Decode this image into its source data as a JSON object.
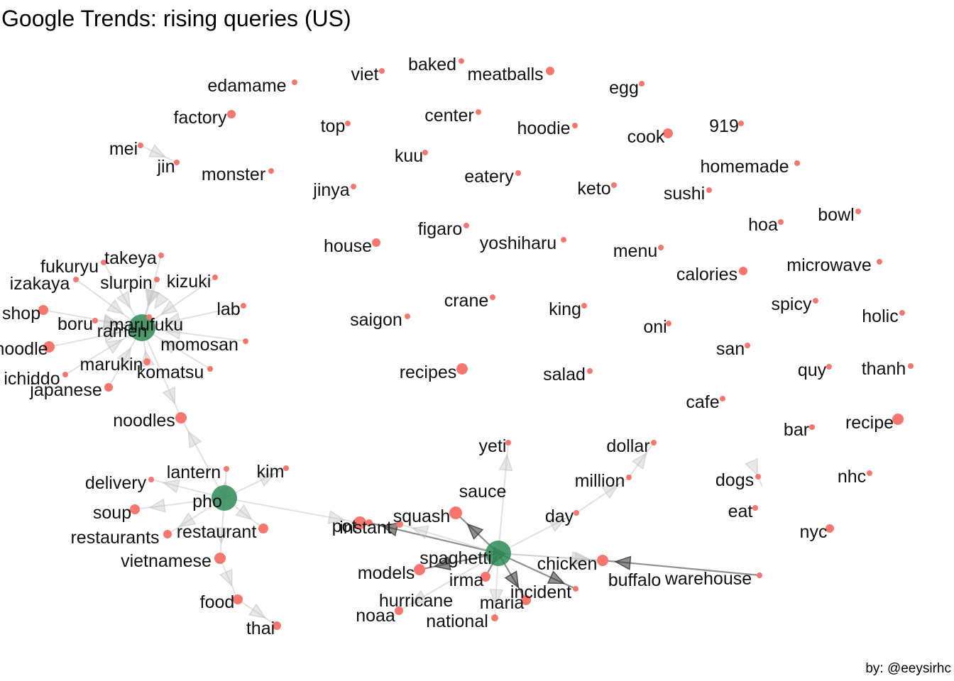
{
  "title": "Google Trends: rising queries (US)",
  "caption": "by: @eeysirhc",
  "colors": {
    "hub": "#2e8b57",
    "node": "#f8766d",
    "edge_light": "#bdbdbd",
    "edge_dark": "#333333"
  },
  "nodes": [
    {
      "id": "ramen",
      "label": "ramen",
      "type": "hub"
    },
    {
      "id": "pho",
      "label": "pho",
      "type": "hub"
    },
    {
      "id": "spaghetti",
      "label": "spaghetti",
      "type": "hub"
    },
    {
      "id": "takeya",
      "label": "takeya"
    },
    {
      "id": "fukuryu",
      "label": "fukuryu"
    },
    {
      "id": "izakaya",
      "label": "izakaya"
    },
    {
      "id": "slurpin",
      "label": "slurpin"
    },
    {
      "id": "kizuki",
      "label": "kizuki"
    },
    {
      "id": "shop",
      "label": "shop"
    },
    {
      "id": "lab",
      "label": "lab"
    },
    {
      "id": "boru",
      "label": "boru"
    },
    {
      "id": "marufuku",
      "label": "marufuku"
    },
    {
      "id": "noodle",
      "label": "noodle"
    },
    {
      "id": "momosan",
      "label": "momosan"
    },
    {
      "id": "marukin",
      "label": "marukin"
    },
    {
      "id": "ichiddo",
      "label": "ichiddo"
    },
    {
      "id": "komatsu",
      "label": "komatsu"
    },
    {
      "id": "japanese",
      "label": "japanese"
    },
    {
      "id": "noodles",
      "label": "noodles"
    },
    {
      "id": "lantern",
      "label": "lantern"
    },
    {
      "id": "kim",
      "label": "kim"
    },
    {
      "id": "delivery",
      "label": "delivery"
    },
    {
      "id": "soup",
      "label": "soup"
    },
    {
      "id": "restaurants",
      "label": "restaurants"
    },
    {
      "id": "restaurant",
      "label": "restaurant"
    },
    {
      "id": "vietnamese",
      "label": "vietnamese"
    },
    {
      "id": "food",
      "label": "food"
    },
    {
      "id": "thai",
      "label": "thai"
    },
    {
      "id": "pot",
      "label": "pot"
    },
    {
      "id": "instant",
      "label": "instant"
    },
    {
      "id": "squash",
      "label": "squash"
    },
    {
      "id": "sauce",
      "label": "sauce"
    },
    {
      "id": "yeti",
      "label": "yeti"
    },
    {
      "id": "dollar",
      "label": "dollar"
    },
    {
      "id": "million",
      "label": "million"
    },
    {
      "id": "day",
      "label": "day"
    },
    {
      "id": "chicken",
      "label": "chicken"
    },
    {
      "id": "buffalo",
      "label": "buffalo"
    },
    {
      "id": "warehouse",
      "label": "warehouse"
    },
    {
      "id": "models",
      "label": "models"
    },
    {
      "id": "irma",
      "label": "irma"
    },
    {
      "id": "incident",
      "label": "incident"
    },
    {
      "id": "hurricane",
      "label": "hurricane"
    },
    {
      "id": "maria",
      "label": "maria"
    },
    {
      "id": "noaa",
      "label": "noaa"
    },
    {
      "id": "national",
      "label": "national"
    },
    {
      "id": "edamame",
      "label": "edamame"
    },
    {
      "id": "viet",
      "label": "viet"
    },
    {
      "id": "baked",
      "label": "baked"
    },
    {
      "id": "meatballs",
      "label": "meatballs"
    },
    {
      "id": "egg",
      "label": "egg"
    },
    {
      "id": "factory",
      "label": "factory"
    },
    {
      "id": "top",
      "label": "top"
    },
    {
      "id": "center",
      "label": "center"
    },
    {
      "id": "hoodie",
      "label": "hoodie"
    },
    {
      "id": "cook",
      "label": "cook"
    },
    {
      "id": "919",
      "label": "919"
    },
    {
      "id": "mei",
      "label": "mei"
    },
    {
      "id": "jin",
      "label": "jin"
    },
    {
      "id": "monster",
      "label": "monster"
    },
    {
      "id": "kuu",
      "label": "kuu"
    },
    {
      "id": "eatery",
      "label": "eatery"
    },
    {
      "id": "homemade",
      "label": "homemade"
    },
    {
      "id": "jinya",
      "label": "jinya"
    },
    {
      "id": "keto",
      "label": "keto"
    },
    {
      "id": "sushi",
      "label": "sushi"
    },
    {
      "id": "hoa",
      "label": "hoa"
    },
    {
      "id": "bowl",
      "label": "bowl"
    },
    {
      "id": "figaro",
      "label": "figaro"
    },
    {
      "id": "house",
      "label": "house"
    },
    {
      "id": "yoshiharu",
      "label": "yoshiharu"
    },
    {
      "id": "menu",
      "label": "menu"
    },
    {
      "id": "calories",
      "label": "calories"
    },
    {
      "id": "microwave",
      "label": "microwave"
    },
    {
      "id": "crane",
      "label": "crane"
    },
    {
      "id": "saigon",
      "label": "saigon"
    },
    {
      "id": "king",
      "label": "king"
    },
    {
      "id": "oni",
      "label": "oni"
    },
    {
      "id": "spicy",
      "label": "spicy"
    },
    {
      "id": "holic",
      "label": "holic"
    },
    {
      "id": "san",
      "label": "san"
    },
    {
      "id": "recipes",
      "label": "recipes"
    },
    {
      "id": "salad",
      "label": "salad"
    },
    {
      "id": "quy",
      "label": "quy"
    },
    {
      "id": "thanh",
      "label": "thanh"
    },
    {
      "id": "cafe",
      "label": "cafe"
    },
    {
      "id": "bar",
      "label": "bar"
    },
    {
      "id": "recipe",
      "label": "recipe"
    },
    {
      "id": "dogs",
      "label": "dogs"
    },
    {
      "id": "nhc",
      "label": "nhc"
    },
    {
      "id": "eat",
      "label": "eat"
    },
    {
      "id": "nyc",
      "label": "nyc"
    }
  ],
  "edges": [
    {
      "from": "takeya",
      "to": "ramen"
    },
    {
      "from": "fukuryu",
      "to": "ramen"
    },
    {
      "from": "izakaya",
      "to": "ramen"
    },
    {
      "from": "slurpin",
      "to": "ramen"
    },
    {
      "from": "kizuki",
      "to": "ramen"
    },
    {
      "from": "shop",
      "to": "ramen"
    },
    {
      "from": "lab",
      "to": "ramen"
    },
    {
      "from": "boru",
      "to": "ramen"
    },
    {
      "from": "marufuku",
      "to": "ramen"
    },
    {
      "from": "noodle",
      "to": "ramen"
    },
    {
      "from": "momosan",
      "to": "ramen"
    },
    {
      "from": "marukin",
      "to": "ramen"
    },
    {
      "from": "ichiddo",
      "to": "ramen"
    },
    {
      "from": "komatsu",
      "to": "ramen"
    },
    {
      "from": "japanese",
      "to": "ramen"
    },
    {
      "from": "ramen",
      "to": "noodles"
    },
    {
      "from": "pho",
      "to": "noodles"
    },
    {
      "from": "pho",
      "to": "lantern"
    },
    {
      "from": "pho",
      "to": "kim"
    },
    {
      "from": "pho",
      "to": "delivery"
    },
    {
      "from": "pho",
      "to": "soup"
    },
    {
      "from": "pho",
      "to": "restaurants"
    },
    {
      "from": "pho",
      "to": "restaurant"
    },
    {
      "from": "pho",
      "to": "vietnamese"
    },
    {
      "from": "pho",
      "to": "pot"
    },
    {
      "from": "vietnamese",
      "to": "food"
    },
    {
      "from": "food",
      "to": "thai"
    },
    {
      "from": "spaghetti",
      "to": "instant",
      "strength": "dark"
    },
    {
      "from": "spaghetti",
      "to": "squash"
    },
    {
      "from": "spaghetti",
      "to": "sauce",
      "strength": "dark"
    },
    {
      "from": "spaghetti",
      "to": "yeti"
    },
    {
      "from": "spaghetti",
      "to": "day"
    },
    {
      "from": "spaghetti",
      "to": "chicken"
    },
    {
      "from": "spaghetti",
      "to": "buffalo"
    },
    {
      "from": "spaghetti",
      "to": "models",
      "strength": "dark"
    },
    {
      "from": "spaghetti",
      "to": "irma",
      "strength": "dark"
    },
    {
      "from": "spaghetti",
      "to": "incident",
      "strength": "dark"
    },
    {
      "from": "spaghetti",
      "to": "hurricane"
    },
    {
      "from": "spaghetti",
      "to": "maria",
      "strength": "dark"
    },
    {
      "from": "spaghetti",
      "to": "national"
    },
    {
      "from": "day",
      "to": "million"
    },
    {
      "from": "million",
      "to": "dollar"
    },
    {
      "from": "warehouse",
      "to": "buffalo",
      "strength": "dark"
    },
    {
      "from": "mei",
      "to": "jin"
    },
    {
      "from": "dogs",
      "to": "dogs"
    }
  ]
}
